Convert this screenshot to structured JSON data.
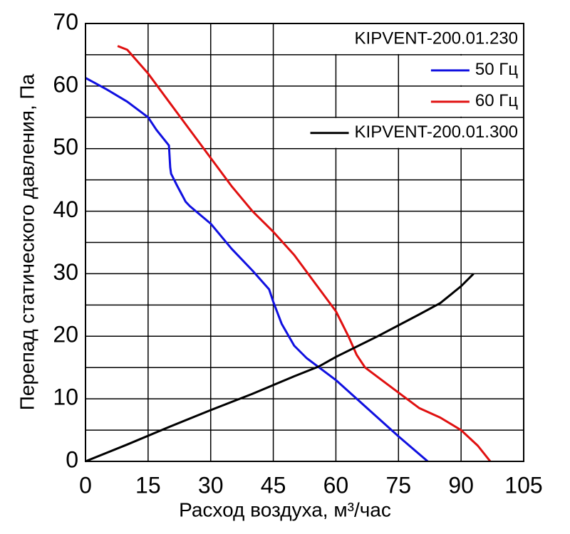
{
  "chart_data": {
    "type": "line",
    "x_label": "Расход воздуха, м³/час",
    "y_label": "Перепад статического давления, Па",
    "legend_group_title": "KIPVENT-200.01.230",
    "legend": "top-right",
    "grid": true,
    "xlim": [
      0,
      105
    ],
    "xticks": [
      0,
      15,
      30,
      45,
      60,
      75,
      90,
      105
    ],
    "ylim": [
      0,
      70
    ],
    "yticks": [
      0,
      10,
      20,
      30,
      40,
      50,
      60,
      70
    ],
    "y_minor_grid": [
      5,
      15,
      25,
      35,
      45,
      55,
      65
    ],
    "series": [
      {
        "name": "50 Гц",
        "color": "#1010e0",
        "x": [
          0,
          5,
          10,
          15,
          17,
          20,
          20.3,
          20.5,
          22,
          24,
          25,
          30,
          35,
          40,
          44,
          45,
          47,
          50,
          53,
          56,
          60,
          65,
          70,
          75,
          82
        ],
        "values": [
          61.3,
          59.5,
          57.5,
          55,
          53,
          50.5,
          47,
          46,
          44,
          41.5,
          40.8,
          38,
          34,
          30.5,
          27.5,
          25.5,
          22,
          18.5,
          16.5,
          15,
          13,
          10,
          7,
          4,
          0
        ]
      },
      {
        "name": "60 Гц",
        "color": "#e01010",
        "x": [
          7.7,
          10,
          15,
          20,
          25,
          30,
          35,
          40,
          45,
          50,
          55,
          60,
          63,
          65,
          67,
          70,
          75,
          80,
          85,
          90,
          94,
          97
        ],
        "values": [
          66.4,
          65.8,
          62,
          57.5,
          53,
          48.5,
          44,
          40,
          36.7,
          33,
          28.5,
          24,
          20,
          17,
          15,
          13.5,
          11,
          8.5,
          7,
          5,
          2.5,
          0
        ]
      },
      {
        "name": "KIPVENT-200.01.300",
        "color": "#000000",
        "x": [
          0,
          10,
          20,
          30,
          40,
          50,
          56,
          60,
          70,
          80,
          85,
          90,
          93
        ],
        "values": [
          0,
          2.7,
          5.5,
          8.2,
          10.8,
          13.6,
          15.2,
          16.7,
          20,
          23.5,
          25.3,
          28,
          30
        ]
      }
    ]
  }
}
